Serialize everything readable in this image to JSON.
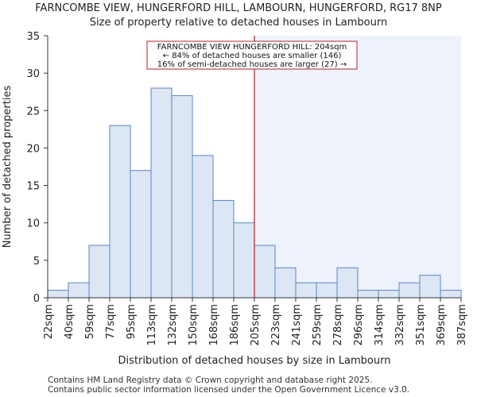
{
  "chart_data": {
    "type": "bar",
    "title": "FARNCOMBE VIEW, HUNGERFORD HILL, LAMBOURN, HUNGERFORD, RG17 8NP",
    "subtitle": "Size of property relative to detached houses in Lambourn",
    "xlabel": "Distribution of detached houses by size in Lambourn",
    "ylabel": "Number of detached properties",
    "x_tick_labels": [
      "22sqm",
      "40sqm",
      "59sqm",
      "77sqm",
      "95sqm",
      "113sqm",
      "132sqm",
      "150sqm",
      "168sqm",
      "186sqm",
      "205sqm",
      "223sqm",
      "241sqm",
      "259sqm",
      "278sqm",
      "296sqm",
      "314sqm",
      "332sqm",
      "351sqm",
      "369sqm",
      "387sqm"
    ],
    "values": [
      1,
      2,
      7,
      23,
      17,
      28,
      27,
      19,
      13,
      10,
      7,
      4,
      2,
      2,
      4,
      1,
      1,
      2,
      3,
      1
    ],
    "ylim": [
      0,
      35
    ],
    "yticks": [
      0,
      5,
      10,
      15,
      20,
      25,
      30,
      35
    ],
    "marker_bin_position": 10,
    "annotation": {
      "line1": "FARNCOMBE VIEW HUNGERFORD HILL: 204sqm",
      "line2": "← 84% of detached houses are smaller (146)",
      "line3": "16% of semi-detached houses are larger (27) →"
    },
    "colors": {
      "bar_fill": "#dce6f4",
      "bar_stroke": "#5a85c2",
      "highlight_bg": "#eef2fb",
      "marker_line": "#b22222",
      "axis": "#333333"
    }
  },
  "footer": {
    "line1": "Contains HM Land Registry data © Crown copyright and database right 2025.",
    "line2": "Contains public sector information licensed under the Open Government Licence v3.0."
  }
}
